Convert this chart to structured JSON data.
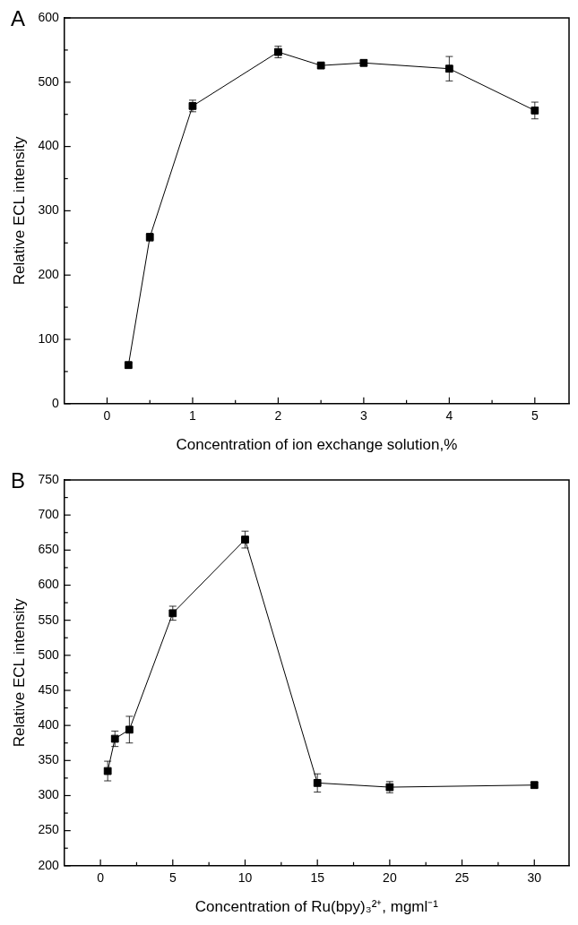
{
  "chart_data": [
    {
      "type": "line",
      "title": "A",
      "xlabel": "Concentration of ion exchange solution,%",
      "ylabel": "Relative ECL intensity",
      "x": [
        0.25,
        0.5,
        1,
        2,
        2.5,
        3,
        4,
        5
      ],
      "series": [
        {
          "color": "#000000",
          "values": [
            60,
            259,
            463,
            547,
            526,
            530,
            521,
            456
          ],
          "errors": [
            3,
            6,
            9,
            9,
            4,
            4,
            19,
            13
          ]
        }
      ],
      "xlim": [
        -0.5,
        5.4
      ],
      "xticks": [
        0,
        {
          "value": 0.5,
          "label": null
        },
        1,
        {
          "value": 1.5,
          "label": null
        },
        2,
        {
          "value": 2.5,
          "label": null
        },
        3,
        {
          "value": 3.5,
          "label": null
        },
        4,
        {
          "value": 4.5,
          "label": null
        },
        5
      ],
      "ylim": [
        0,
        600
      ],
      "yticks": [
        0,
        {
          "value": 50,
          "label": null
        },
        100,
        {
          "value": 150,
          "label": null
        },
        200,
        {
          "value": 250,
          "label": null
        },
        300,
        {
          "value": 350,
          "label": null
        },
        400,
        {
          "value": 450,
          "label": null
        },
        500,
        {
          "value": 550,
          "label": null
        },
        600
      ],
      "grid": false,
      "legend": false,
      "marker": "square",
      "line_style": "solid"
    },
    {
      "type": "line",
      "title": "B",
      "xlabel": "Concentration of Ru(bpy)₃²⁺, mgml⁻¹",
      "ylabel": "Relative ECL intensity",
      "x": [
        0.5,
        1,
        2,
        5,
        10,
        15,
        20,
        30
      ],
      "series": [
        {
          "color": "#000000",
          "values": [
            335,
            381,
            394,
            560,
            665,
            318,
            312,
            315
          ],
          "errors": [
            14,
            11,
            19,
            10,
            12,
            13,
            8,
            4
          ]
        }
      ],
      "xlim": [
        -2.5,
        32.4
      ],
      "xticks": [
        0,
        {
          "value": 2.5,
          "label": null
        },
        5,
        {
          "value": 7.5,
          "label": null
        },
        10,
        {
          "value": 12.5,
          "label": null
        },
        15,
        {
          "value": 17.5,
          "label": null
        },
        20,
        {
          "value": 22.5,
          "label": null
        },
        25,
        {
          "value": 27.5,
          "label": null
        },
        30
      ],
      "ylim": [
        200,
        750
      ],
      "yticks": [
        200,
        {
          "value": 225,
          "label": null
        },
        250,
        {
          "value": 275,
          "label": null
        },
        300,
        {
          "value": 325,
          "label": null
        },
        350,
        {
          "value": 375,
          "label": null
        },
        400,
        {
          "value": 425,
          "label": null
        },
        450,
        {
          "value": 475,
          "label": null
        },
        500,
        {
          "value": 525,
          "label": null
        },
        550,
        {
          "value": 575,
          "label": null
        },
        600,
        {
          "value": 625,
          "label": null
        },
        650,
        {
          "value": 675,
          "label": null
        },
        700,
        {
          "value": 725,
          "label": null
        },
        750
      ],
      "grid": false,
      "legend": false,
      "marker": "square",
      "line_style": "solid"
    }
  ]
}
